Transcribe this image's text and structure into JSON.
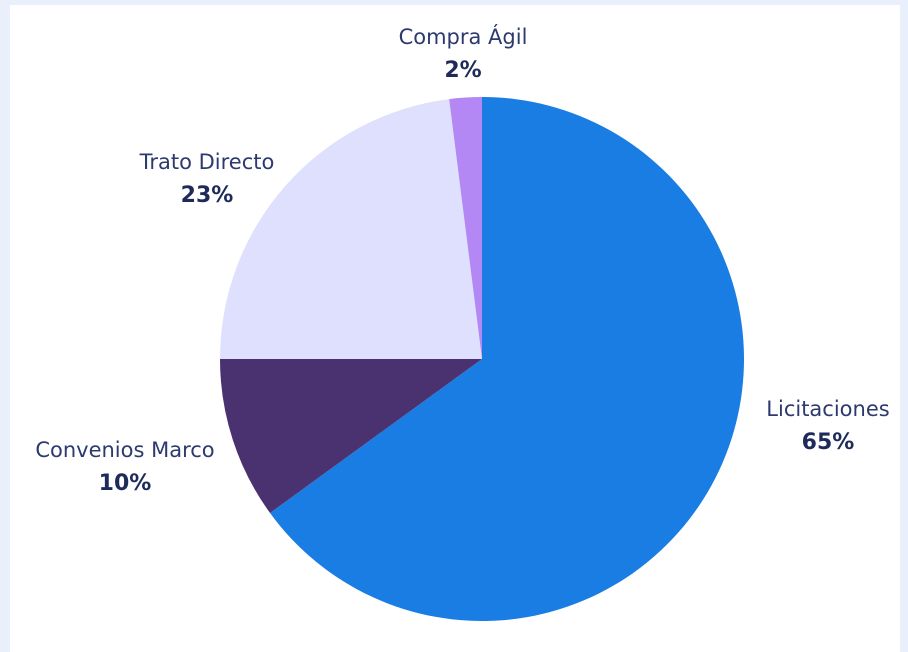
{
  "chart_data": {
    "type": "pie",
    "categories": [
      "Licitaciones",
      "Convenios Marco",
      "Trato Directo",
      "Compra Ágil"
    ],
    "values": [
      65,
      10,
      23,
      2
    ],
    "value_labels": [
      "65%",
      "10%",
      "23%",
      "2%"
    ],
    "colors": [
      "#1a7de3",
      "#4a3270",
      "#dfe0fd",
      "#b388f5"
    ]
  }
}
